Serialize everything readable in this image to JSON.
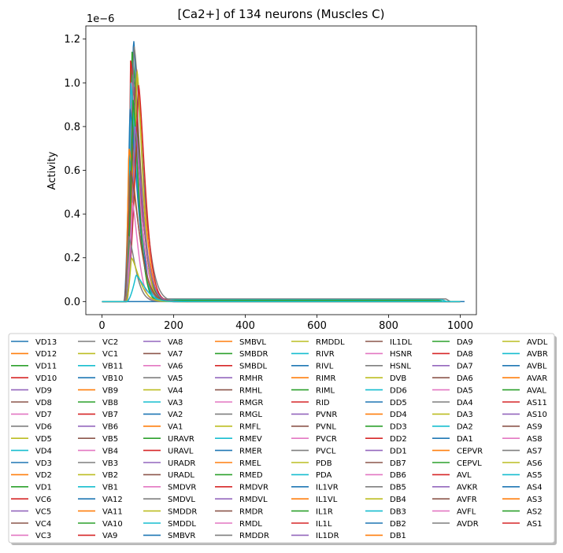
{
  "chart_data": {
    "type": "line",
    "title": "[Ca2+] of 134 neurons (Muscles C)",
    "xlabel": "",
    "ylabel": "Activity",
    "y_scale_label": "1e−6",
    "xlim": [
      -45,
      1045
    ],
    "ylim": [
      -0.06,
      1.26
    ],
    "x_ticks": [
      0,
      200,
      400,
      600,
      800,
      1000
    ],
    "x_tick_labels": [
      "0",
      "200",
      "400",
      "600",
      "800",
      "1000"
    ],
    "y_ticks": [
      0.0,
      0.2,
      0.4,
      0.6,
      0.8,
      1.0,
      1.2
    ],
    "y_tick_labels": [
      "0.0",
      "0.2",
      "0.4",
      "0.6",
      "0.8",
      "1.0",
      "1.2"
    ],
    "grid": false,
    "legend_placement": "below the plot, 8 columns",
    "colors": [
      "#1f77b4",
      "#ff7f0e",
      "#2ca02c",
      "#d62728",
      "#9467bd",
      "#8c564b",
      "#e377c2",
      "#7f7f7f",
      "#bcbd22",
      "#17becf"
    ],
    "series_names": [
      "VD13",
      "VD12",
      "VD11",
      "VD10",
      "VD9",
      "VD8",
      "VD7",
      "VD6",
      "VD5",
      "VD4",
      "VD3",
      "VD2",
      "VD1",
      "VC6",
      "VC5",
      "VC4",
      "VC3",
      "VC2",
      "VC1",
      "VB11",
      "VB10",
      "VB9",
      "VB8",
      "VB7",
      "VB6",
      "VB5",
      "VB4",
      "VB3",
      "VB2",
      "VB1",
      "VA12",
      "VA11",
      "VA10",
      "VA9",
      "VA8",
      "VA7",
      "VA6",
      "VA5",
      "VA4",
      "VA3",
      "VA2",
      "VA1",
      "URAVR",
      "URAVL",
      "URADR",
      "URADL",
      "SMDVR",
      "SMDVL",
      "SMDDR",
      "SMDDL",
      "SMBVR",
      "SMBVL",
      "SMBDR",
      "SMBDL",
      "RMHR",
      "RMHL",
      "RMGR",
      "RMGL",
      "RMFL",
      "RMEV",
      "RMER",
      "RMEL",
      "RMED",
      "RMDVR",
      "RMDVL",
      "RMDR",
      "RMDL",
      "RMDDR",
      "RMDDL",
      "RIVR",
      "RIVL",
      "RIMR",
      "RIML",
      "RID",
      "PVNR",
      "PVNL",
      "PVCR",
      "PVCL",
      "PDB",
      "PDA",
      "IL1VR",
      "IL1VL",
      "IL1R",
      "IL1L",
      "IL1DR",
      "IL1DL",
      "HSNR",
      "HSNL",
      "DVB",
      "DD6",
      "DD5",
      "DD4",
      "DD3",
      "DD2",
      "DD1",
      "DB7",
      "DB6",
      "DB5",
      "DB4",
      "DB3",
      "DB2",
      "DB1",
      "DA9",
      "DA8",
      "DA7",
      "DA6",
      "DA5",
      "DA4",
      "DA3",
      "DA2",
      "DA1",
      "CEPVR",
      "CEPVL",
      "AVL",
      "AVKR",
      "AVFR",
      "AVFL",
      "AVDR",
      "AVDL",
      "AVBR",
      "AVBL",
      "AVAR",
      "AVAL",
      "AS11",
      "AS10",
      "AS9",
      "AS8",
      "AS7",
      "AS6",
      "AS5",
      "AS4",
      "AS3",
      "AS2",
      "AS1"
    ],
    "peaks": [
      {
        "x": 88,
        "y": 1.2
      },
      {
        "x": 97,
        "y": 1.06
      },
      {
        "x": 84,
        "y": 1.14
      },
      {
        "x": 80,
        "y": 1.1
      },
      {
        "x": 86,
        "y": 1.04
      },
      {
        "x": 92,
        "y": 0.98
      },
      {
        "x": 82,
        "y": 1.0
      },
      {
        "x": 89,
        "y": 1.17
      },
      {
        "x": 98,
        "y": 1.05
      },
      {
        "x": 80,
        "y": 1.0
      },
      {
        "x": 78,
        "y": 0.88
      },
      {
        "x": 75,
        "y": 0.7
      },
      {
        "x": 87,
        "y": 0.92
      },
      {
        "x": 102,
        "y": 0.99
      },
      {
        "x": 92,
        "y": 0.8
      },
      {
        "x": 79,
        "y": 0.6
      },
      {
        "x": 85,
        "y": 0.45
      },
      {
        "x": 74,
        "y": 0.3
      },
      {
        "x": 82,
        "y": 0.2
      },
      {
        "x": 95,
        "y": 0.12
      }
    ]
  },
  "legend": [
    [
      "VD13",
      "VD12",
      "VD11",
      "VD10",
      "VD9",
      "VD8",
      "VD7",
      "VD6",
      "VD5",
      "VD4",
      "VD3",
      "VD2",
      "VD1",
      "VC6",
      "VC5",
      "VC4",
      "VC3"
    ],
    [
      "VC2",
      "VC1",
      "VB11",
      "VB10",
      "VB9",
      "VB8",
      "VB7",
      "VB6",
      "VB5",
      "VB4",
      "VB3",
      "VB2",
      "VB1",
      "VA12",
      "VA11",
      "VA10",
      "VA9"
    ],
    [
      "VA8",
      "VA7",
      "VA6",
      "VA5",
      "VA4",
      "VA3",
      "VA2",
      "VA1",
      "URAVR",
      "URAVL",
      "URADR",
      "URADL",
      "SMDVR",
      "SMDVL",
      "SMDDR",
      "SMDDL",
      "SMBVR"
    ],
    [
      "SMBVL",
      "SMBDR",
      "SMBDL",
      "RMHR",
      "RMHL",
      "RMGR",
      "RMGL",
      "RMFL",
      "RMEV",
      "RMER",
      "RMEL",
      "RMED",
      "RMDVR",
      "RMDVL",
      "RMDR",
      "RMDL",
      "RMDDR"
    ],
    [
      "RMDDL",
      "RIVR",
      "RIVL",
      "RIMR",
      "RIML",
      "RID",
      "PVNR",
      "PVNL",
      "PVCR",
      "PVCL",
      "PDB",
      "PDA",
      "IL1VR",
      "IL1VL",
      "IL1R",
      "IL1L",
      "IL1DR"
    ],
    [
      "IL1DL",
      "HSNR",
      "HSNL",
      "DVB",
      "DD6",
      "DD5",
      "DD4",
      "DD3",
      "DD2",
      "DD1",
      "DB7",
      "DB6",
      "DB5",
      "DB4",
      "DB3",
      "DB2",
      "DB1"
    ],
    [
      "DA9",
      "DA8",
      "DA7",
      "DA6",
      "DA5",
      "DA4",
      "DA3",
      "DA2",
      "DA1",
      "CEPVR",
      "CEPVL",
      "AVL",
      "AVKR",
      "AVFR",
      "AVFL",
      "AVDR"
    ],
    [
      "AVDL",
      "AVBR",
      "AVBL",
      "AVAR",
      "AVAL",
      "AS11",
      "AS10",
      "AS9",
      "AS8",
      "AS7",
      "AS6",
      "AS5",
      "AS4",
      "AS3",
      "AS2",
      "AS1"
    ]
  ]
}
